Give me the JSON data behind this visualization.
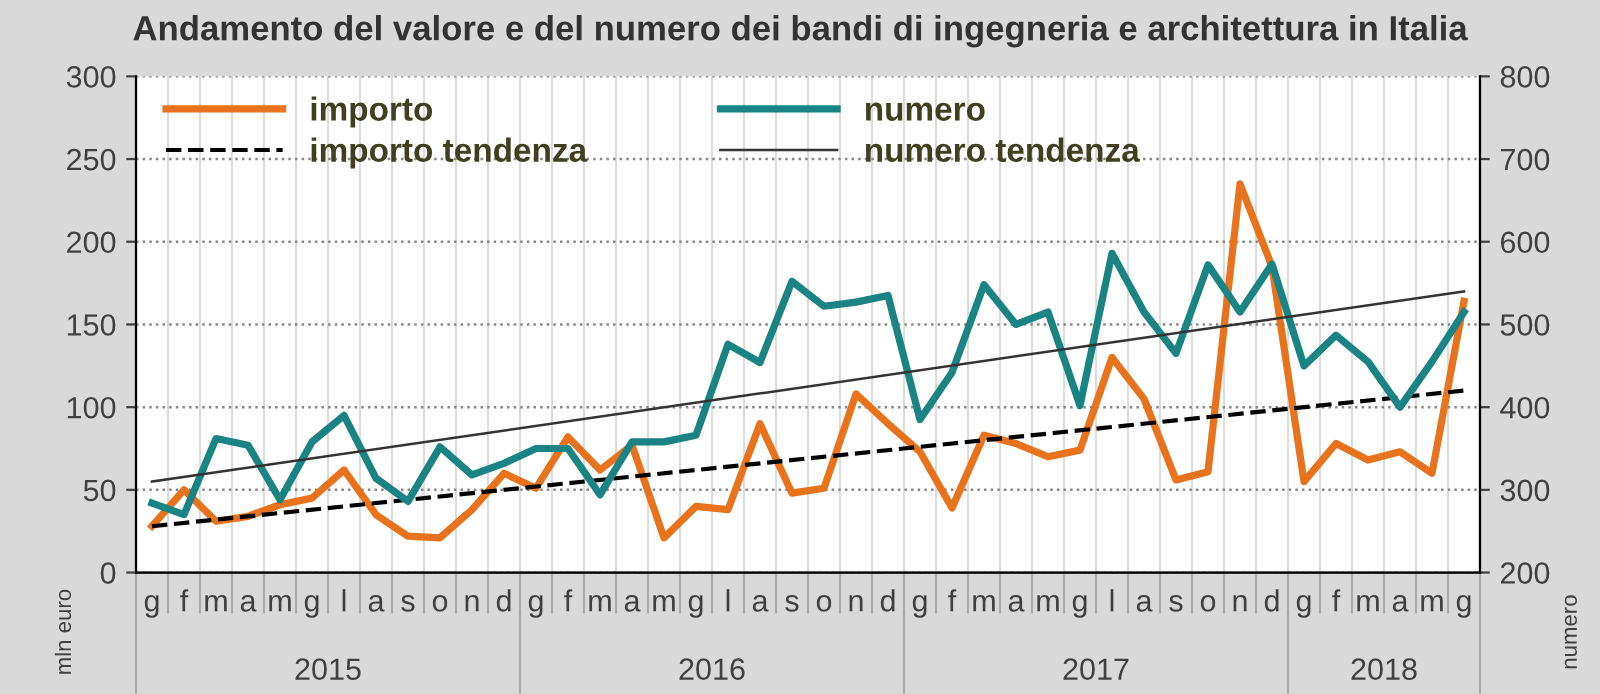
{
  "chart_data": {
    "type": "line",
    "title": "Andamento del valore e del numero dei bandi di ingegneria e architettura in Italia",
    "categories": [
      "g",
      "f",
      "m",
      "a",
      "m",
      "g",
      "l",
      "a",
      "s",
      "o",
      "n",
      "d",
      "g",
      "f",
      "m",
      "a",
      "m",
      "g",
      "l",
      "a",
      "s",
      "o",
      "n",
      "d",
      "g",
      "f",
      "m",
      "a",
      "m",
      "g",
      "l",
      "a",
      "s",
      "o",
      "n",
      "d",
      "g",
      "f",
      "m",
      "a",
      "m",
      "g"
    ],
    "series": [
      {
        "name": "importo",
        "color": "#e8731c",
        "values": [
          28,
          50,
          31,
          34,
          41,
          45,
          62,
          35,
          22,
          21,
          38,
          60,
          51,
          82,
          62,
          77,
          21,
          40,
          38,
          90,
          48,
          51,
          108,
          90,
          73,
          39,
          83,
          78,
          70,
          74,
          130,
          105,
          56,
          61,
          235,
          185,
          55,
          78,
          68,
          73,
          60,
          164
        ]
      },
      {
        "name": "numero",
        "color": "#1a8383",
        "axis": "y2",
        "values": [
          284,
          270,
          362,
          354,
          288,
          358,
          390,
          314,
          286,
          352,
          318,
          332,
          350,
          350,
          294,
          358,
          358,
          366,
          476,
          454,
          552,
          522,
          527,
          535,
          385,
          442,
          548,
          500,
          515,
          402,
          586,
          515,
          465,
          572,
          515,
          573,
          450,
          487,
          455,
          400,
          455,
          515
        ]
      },
      {
        "name": "importo tendenza",
        "color": "#000000",
        "line_style": "dashed",
        "values": [
          28,
          null,
          null,
          null,
          null,
          null,
          null,
          null,
          null,
          null,
          null,
          null,
          null,
          null,
          null,
          null,
          null,
          null,
          null,
          null,
          null,
          null,
          null,
          null,
          null,
          null,
          null,
          null,
          null,
          null,
          null,
          null,
          null,
          null,
          null,
          null,
          null,
          null,
          null,
          null,
          null,
          110
        ]
      },
      {
        "name": "numero tendenza",
        "color": "#333333",
        "axis": "y2",
        "values": [
          310,
          null,
          null,
          null,
          null,
          null,
          null,
          null,
          null,
          null,
          null,
          null,
          null,
          null,
          null,
          null,
          null,
          null,
          null,
          null,
          null,
          null,
          null,
          null,
          null,
          null,
          null,
          null,
          null,
          null,
          null,
          null,
          null,
          null,
          null,
          null,
          null,
          null,
          null,
          null,
          null,
          540
        ]
      }
    ],
    "ylabel": "mln euro",
    "y2label": "numero",
    "ylim": [
      0,
      300
    ],
    "yticks": [
      0,
      50,
      100,
      150,
      200,
      250,
      300
    ],
    "y2lim": [
      200,
      800
    ],
    "y2ticks": [
      200,
      300,
      400,
      500,
      600,
      700,
      800
    ],
    "annotations": [
      "2015",
      "2016",
      "2017",
      "2018"
    ],
    "grid": true,
    "legend": "top left",
    "marker": "none"
  }
}
